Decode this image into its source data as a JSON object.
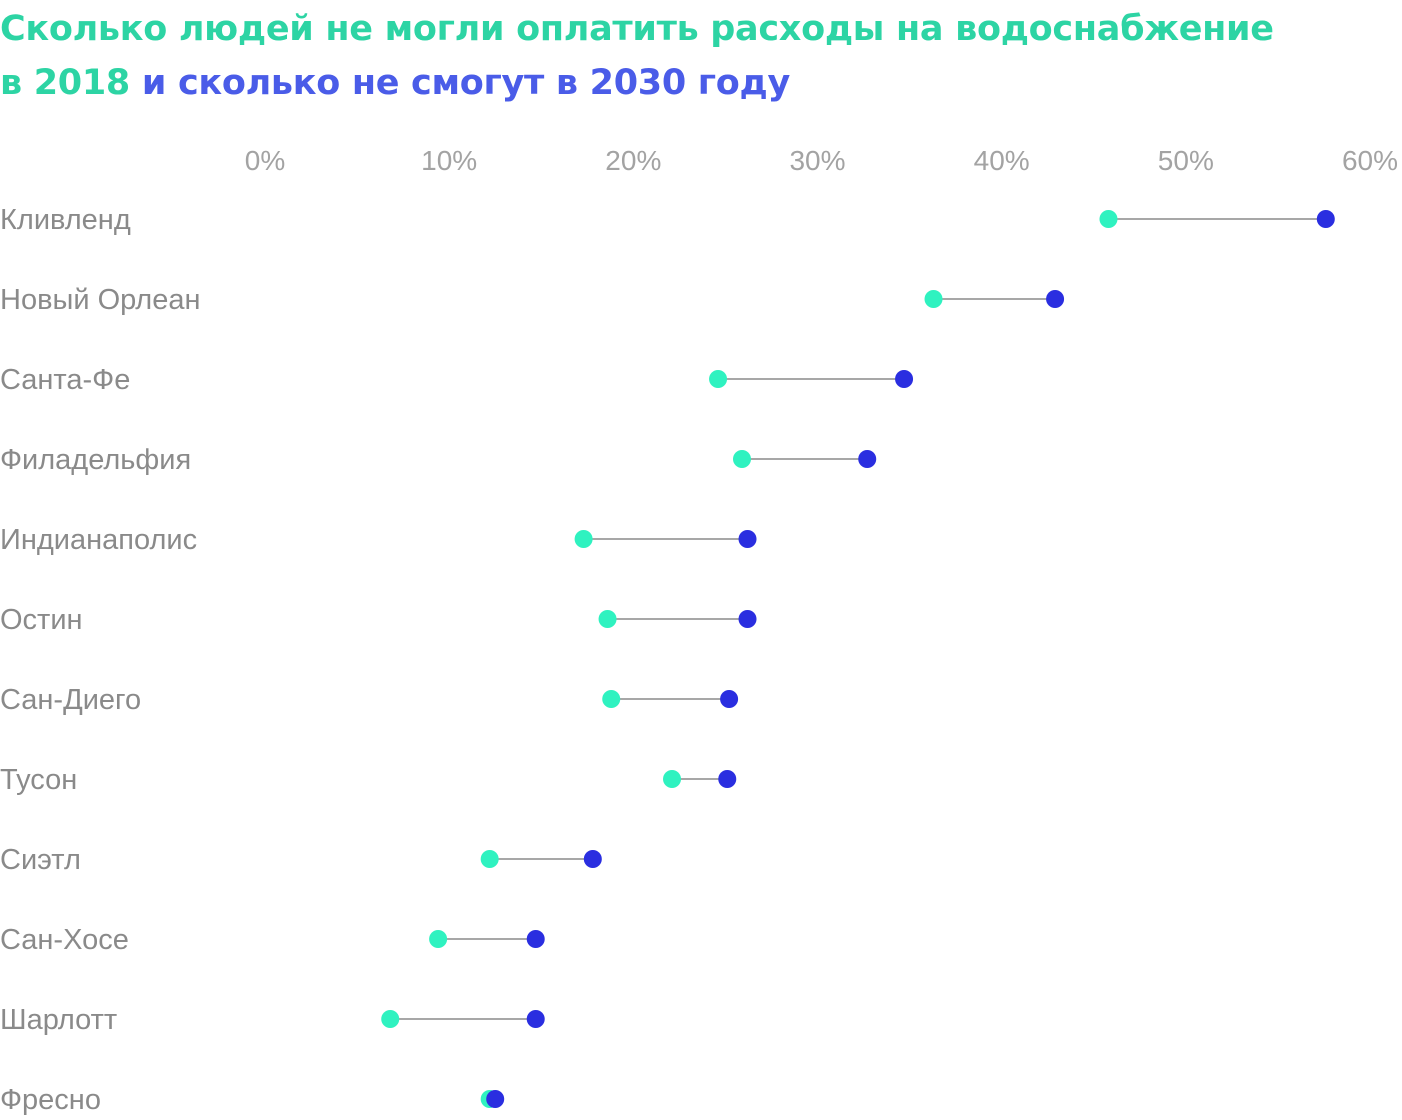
{
  "title": {
    "part1": "Сколько людей не могли оплатить расходы на водоснабжение",
    "part2_prefix": "в ",
    "year_2018": "2018",
    "part3": "и сколько не смогут в 2030 году"
  },
  "colors": {
    "series_2018": "#2ff2c0",
    "series_2030": "#2a2ee0",
    "title_2018": "#2dd4a4",
    "title_2030": "#4a5ce8",
    "connector": "#8a8a8a",
    "labels": "#8a8a8a"
  },
  "chart_data": {
    "type": "scatter",
    "subtype": "dumbbell",
    "title": "Сколько людей не могли оплатить расходы на водоснабжение в 2018 и сколько не смогут в 2030 году",
    "xlim": [
      0,
      60
    ],
    "x_ticks": [
      0,
      10,
      20,
      30,
      40,
      50,
      60
    ],
    "x_tick_labels": [
      "0%",
      "10%",
      "20%",
      "30%",
      "40%",
      "50%",
      "60%"
    ],
    "x_axis_position": "top",
    "grid": false,
    "categories": [
      "Кливленд",
      "Новый Орлеан",
      "Санта-Фе",
      "Филадельфия",
      "Индианаполис",
      "Остин",
      "Сан-Диего",
      "Тусон",
      "Сиэтл",
      "Сан-Хосе",
      "Шарлотт",
      "Фресно"
    ],
    "series": [
      {
        "name": "2018",
        "values": [
          45.8,
          36.3,
          24.6,
          25.9,
          17.3,
          18.6,
          18.8,
          22.1,
          12.2,
          9.4,
          6.8,
          12.2
        ]
      },
      {
        "name": "2030",
        "values": [
          57.6,
          42.9,
          34.7,
          32.7,
          26.2,
          26.2,
          25.2,
          25.1,
          17.8,
          14.7,
          14.7,
          12.5
        ]
      }
    ]
  }
}
